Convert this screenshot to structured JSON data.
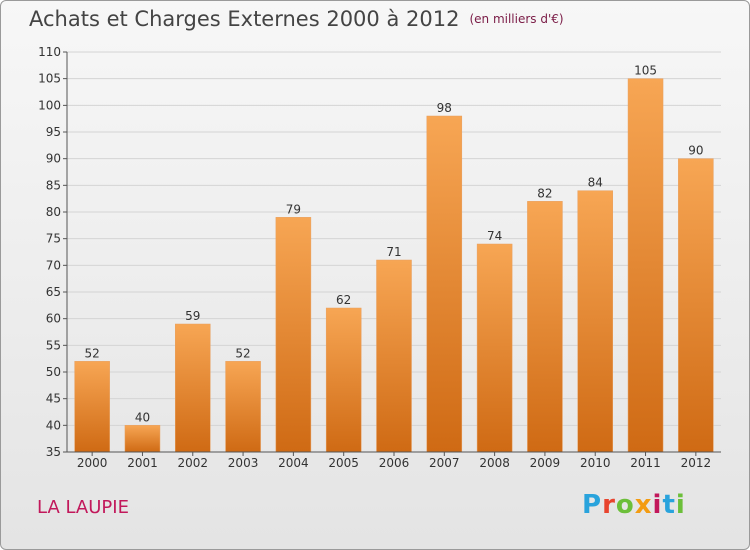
{
  "header": {
    "title": "Achats et Charges Externes 2000 à 2012",
    "unit": "(en milliers d'€)"
  },
  "commune": "LA LAUPIE",
  "logo": {
    "text": "Proxiti",
    "letters": [
      "P",
      "r",
      "o",
      "x",
      "i",
      "t",
      "i"
    ],
    "colors": [
      "#29a3dc",
      "#e8442e",
      "#6cbf3a",
      "#f39c12",
      "#c2185b",
      "#29a3dc",
      "#6cbf3a"
    ]
  },
  "colors": {
    "bar_top": "#f7a654",
    "bar_bottom": "#cf6a14",
    "grid": "#d4d4d4",
    "axis": "#555555"
  },
  "chart_data": {
    "type": "bar",
    "title": "Achats et Charges Externes 2000 à 2012",
    "xlabel": "",
    "ylabel": "",
    "categories": [
      "2000",
      "2001",
      "2002",
      "2003",
      "2004",
      "2005",
      "2006",
      "2007",
      "2008",
      "2009",
      "2010",
      "2011",
      "2012"
    ],
    "values": [
      52,
      40,
      59,
      52,
      79,
      62,
      71,
      98,
      74,
      82,
      84,
      105,
      90
    ],
    "ylim": [
      35,
      110
    ],
    "yticks": [
      35,
      40,
      45,
      50,
      55,
      60,
      65,
      70,
      75,
      80,
      85,
      90,
      95,
      100,
      105,
      110
    ],
    "grid": true
  }
}
